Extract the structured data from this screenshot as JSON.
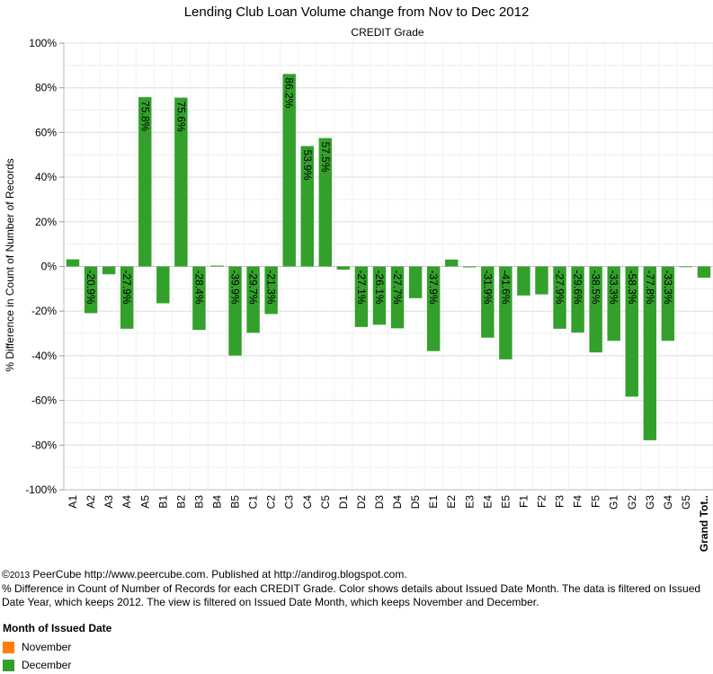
{
  "chart_data": {
    "type": "bar",
    "title": "Lending Club Loan Volume change from Nov to Dec 2012",
    "subtitle": "CREDIT Grade",
    "ylabel": "% Difference in Count of Number of Records",
    "xlabel": "",
    "ylim": [
      -100,
      100
    ],
    "yticks": [
      100,
      80,
      60,
      40,
      20,
      0,
      -20,
      -40,
      -60,
      -80,
      -100
    ],
    "ytick_labels": [
      "100%",
      "80%",
      "60%",
      "40%",
      "20%",
      "0%",
      "-20%",
      "-40%",
      "-60%",
      "-80%",
      "-100%"
    ],
    "grid": true,
    "categories": [
      "A1",
      "A2",
      "A3",
      "A4",
      "A5",
      "B1",
      "B2",
      "B3",
      "B4",
      "B5",
      "C1",
      "C2",
      "C3",
      "C4",
      "C5",
      "D1",
      "D2",
      "D3",
      "D4",
      "D5",
      "E1",
      "E2",
      "E3",
      "E4",
      "E5",
      "F1",
      "F2",
      "F3",
      "F4",
      "F5",
      "G1",
      "G2",
      "G3",
      "G4",
      "G5",
      "Grand Tot.."
    ],
    "bold_categories": [
      "Grand Tot.."
    ],
    "values": [
      3.2,
      -20.9,
      -3.5,
      -27.9,
      75.8,
      -16.5,
      75.6,
      -28.4,
      0.4,
      -39.9,
      -29.7,
      -21.3,
      86.2,
      53.9,
      57.5,
      -1.4,
      -27.1,
      -26.1,
      -27.7,
      -14.2,
      -37.9,
      3.1,
      -0.4,
      -31.9,
      -41.6,
      -13.0,
      -12.5,
      -27.9,
      -29.6,
      -38.5,
      -33.3,
      -58.3,
      -77.8,
      -33.3,
      0,
      -5.0
    ],
    "data_labels": [
      "",
      "-20.9%",
      "",
      "-27.9%",
      "75.8%",
      "",
      "75.6%",
      "-28.4%",
      "",
      "-39.9%",
      "-29.7%",
      "-21.3%",
      "86.2%",
      "53.9%",
      "57.5%",
      "",
      "-27.1%",
      "-26.1%",
      "-27.7%",
      "",
      "-37.9%",
      "",
      "",
      "-31.9%",
      "-41.6%",
      "",
      "",
      "-27.9%",
      "-29.6%",
      "-38.5%",
      "-33.3%",
      "-58.3%",
      "-77.8%",
      "-33.3%",
      "",
      ""
    ],
    "series": [
      {
        "name": "December",
        "color": "#33a02c"
      }
    ]
  },
  "footer": {
    "copyright_symbol": "©",
    "copyright_year": "2013",
    "line1": " PeerCube http://www.peercube.com. Published at http://andirog.blogspot.com.",
    "line2": "% Difference in Count of Number of Records for each CREDIT Grade.  Color shows details about Issued Date Month. The data is filtered on Issued Date Year, which keeps 2012. The view is filtered on Issued Date Month, which keeps November and December."
  },
  "legend": {
    "title": "Month of Issued Date",
    "items": [
      {
        "label": "November",
        "color": "#ff7f0e"
      },
      {
        "label": "December",
        "color": "#33a02c"
      }
    ]
  }
}
